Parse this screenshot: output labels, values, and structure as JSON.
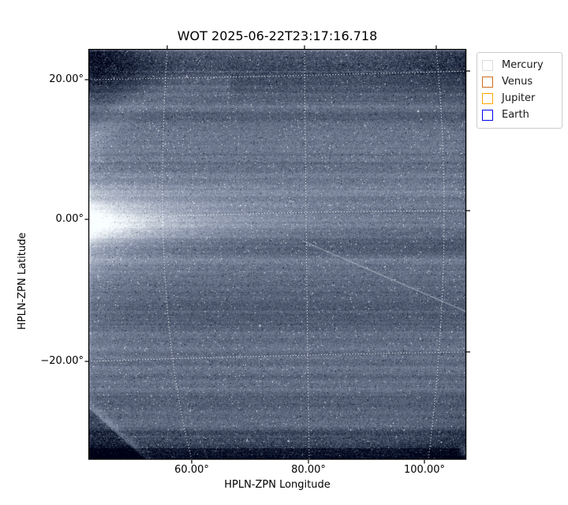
{
  "figure": {
    "title": "WOT 2025-06-22T23:17:16.718",
    "background": "#ffffff"
  },
  "axes": {
    "xlabel": "HPLN-ZPN Longitude",
    "ylabel": "HPLN-ZPN Latitude",
    "xticks": [
      "60.00°",
      "80.00°",
      "100.00°"
    ],
    "yticks": [
      "20.00°",
      "0.00°",
      "−20.00°"
    ]
  },
  "legend": {
    "entries": [
      {
        "label": "Mercury",
        "color": "#dcdcdc"
      },
      {
        "label": "Venus",
        "color": "#cd6a1e"
      },
      {
        "label": "Jupiter",
        "color": "#ffa500"
      },
      {
        "label": "Earth",
        "color": "#0000ee"
      }
    ]
  },
  "colors": {
    "field_base": "#606a80",
    "field_bright": "#d5e2e2",
    "field_dark_band": "#141a28",
    "graticule": "#ffffff",
    "spine": "#000000"
  },
  "chart_data": {
    "type": "heatmap",
    "title": "WOT 2025-06-22T23:17:16.718",
    "xlabel": "HPLN-ZPN Longitude",
    "ylabel": "HPLN-ZPN Latitude",
    "x_ticks_deg": [
      60,
      80,
      100
    ],
    "y_ticks_deg": [
      20,
      0,
      -20
    ],
    "x_range_deg": [
      42.2,
      107.2
    ],
    "y_range_deg": [
      -34.1,
      24.3
    ],
    "grid": "white dotted curved graticule (ZPN projection), gridlines every 20 degrees",
    "legend_entries": [
      "Mercury",
      "Venus",
      "Jupiter",
      "Earth"
    ],
    "legend_position": "upper right, outside axes",
    "image_description": "Noisy slate-blue heliospheric imager starfield; bright white zodiacal-light band near 0° latitude strongest at left edge fading rightward; dark noisy detector bands along top and bottom edges; dark vignetted corners with bright rounded rims at top-left and bottom-left; faint bright diagonal streak from (~77°,-4°) to the right edge; speckled stars and dark pixels throughout"
  }
}
